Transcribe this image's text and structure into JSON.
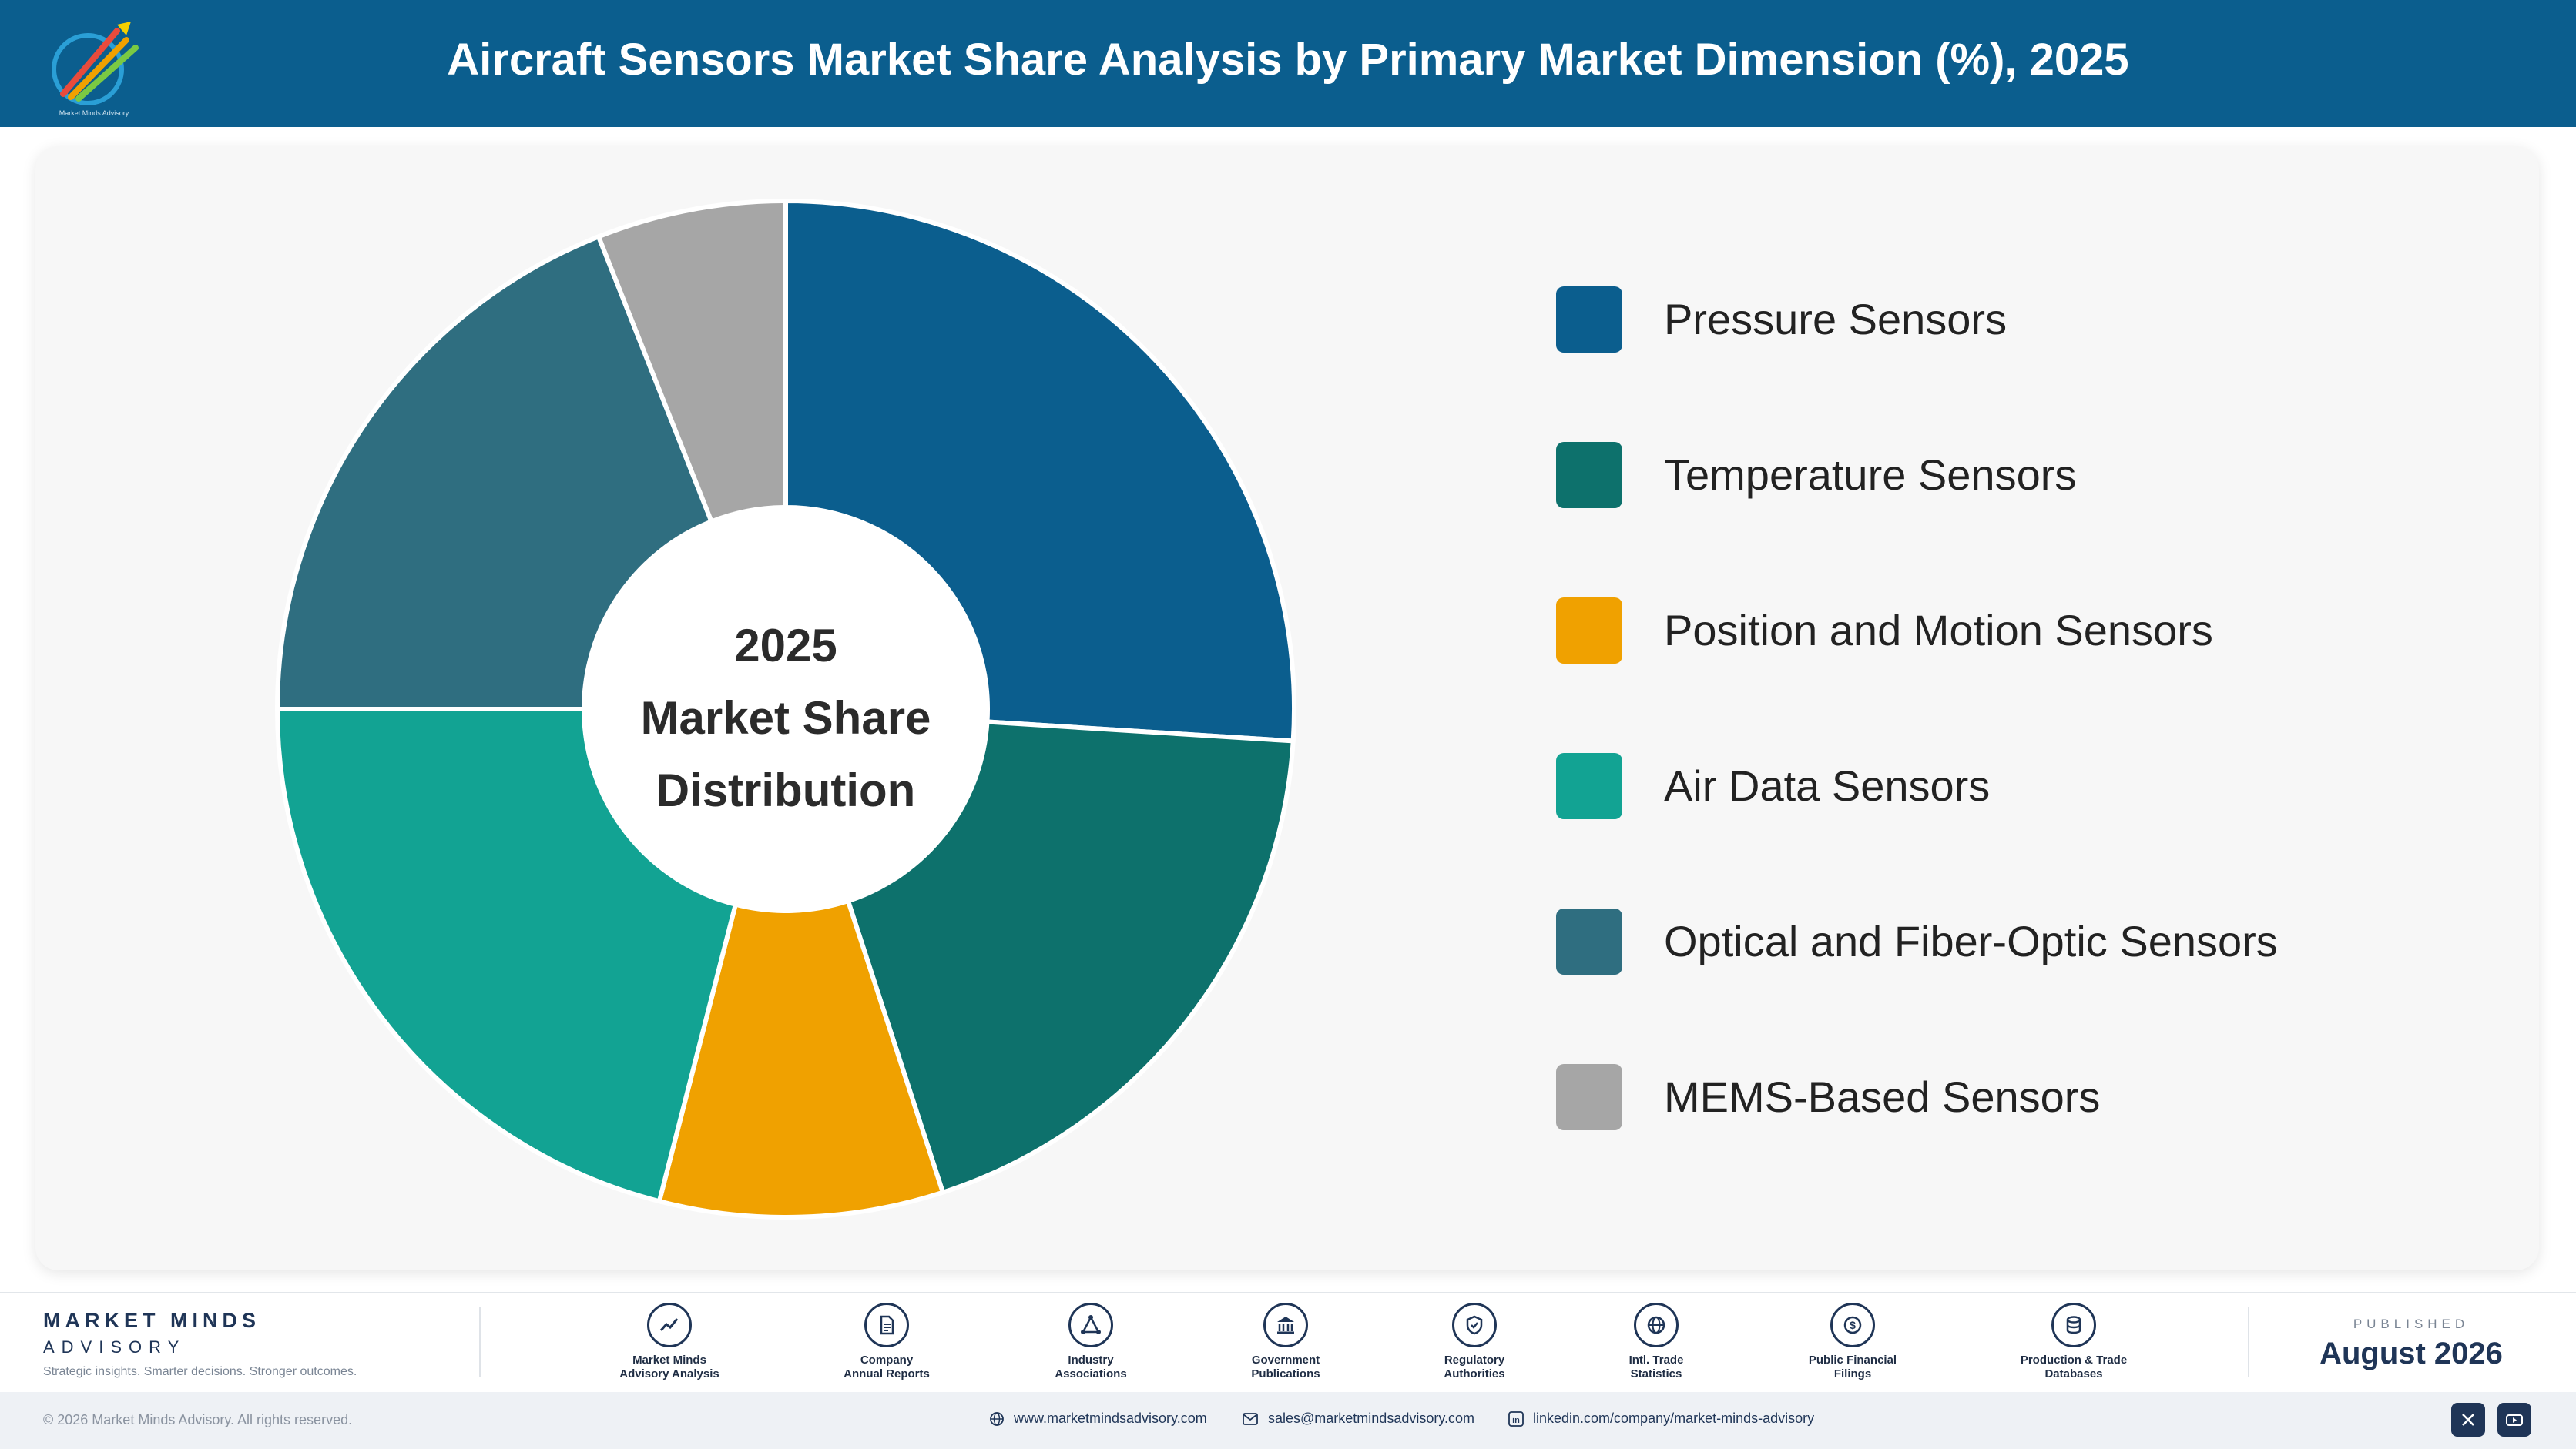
{
  "header": {
    "title": "Aircraft Sensors Market Share Analysis by Primary Market Dimension (%), 2025",
    "logo_text": "Market Minds Advisory"
  },
  "center_label": {
    "line1": "2025",
    "line2": "Market Share",
    "line3": "Distribution"
  },
  "chart_data": {
    "type": "pie",
    "title": "Aircraft Sensors Market Share Analysis by Primary Market Dimension (%), 2025",
    "categories": [
      "Pressure Sensors",
      "Temperature Sensors",
      "Position and Motion Sensors",
      "Air Data Sensors",
      "Optical and Fiber-Optic Sensors",
      "MEMS-Based Sensors"
    ],
    "values": [
      26,
      19,
      9,
      21,
      19,
      6
    ],
    "colors": [
      "#0b5e8e",
      "#0d716c",
      "#f0a100",
      "#12a393",
      "#2f6e80",
      "#a6a6a6"
    ],
    "legend_position": "right",
    "donut": true
  },
  "footer": {
    "brand_name": "MARKET MINDS",
    "brand_sub": "ADVISORY",
    "tagline": "Strategic insights. Smarter decisions. Stronger outcomes.",
    "sources": [
      {
        "line1": "Market Minds",
        "line2": "Advisory Analysis",
        "icon": "chart-line-icon"
      },
      {
        "line1": "Company",
        "line2": "Annual Reports",
        "icon": "document-icon"
      },
      {
        "line1": "Industry",
        "line2": "Associations",
        "icon": "network-icon"
      },
      {
        "line1": "Government",
        "line2": "Publications",
        "icon": "government-icon"
      },
      {
        "line1": "Regulatory",
        "line2": "Authorities",
        "icon": "shield-icon"
      },
      {
        "line1": "Intl. Trade",
        "line2": "Statistics",
        "icon": "globe-icon"
      },
      {
        "line1": "Public Financial",
        "line2": "Filings",
        "icon": "dollar-icon"
      },
      {
        "line1": "Production & Trade",
        "line2": "Databases",
        "icon": "database-icon"
      }
    ],
    "published_label": "PUBLISHED",
    "published_date": "August 2026",
    "copyright": "© 2026 Market Minds Advisory. All rights reserved.",
    "website": "www.marketmindsadvisory.com",
    "email": "sales@marketmindsadvisory.com",
    "linkedin": "linkedin.com/company/market-minds-advisory"
  }
}
